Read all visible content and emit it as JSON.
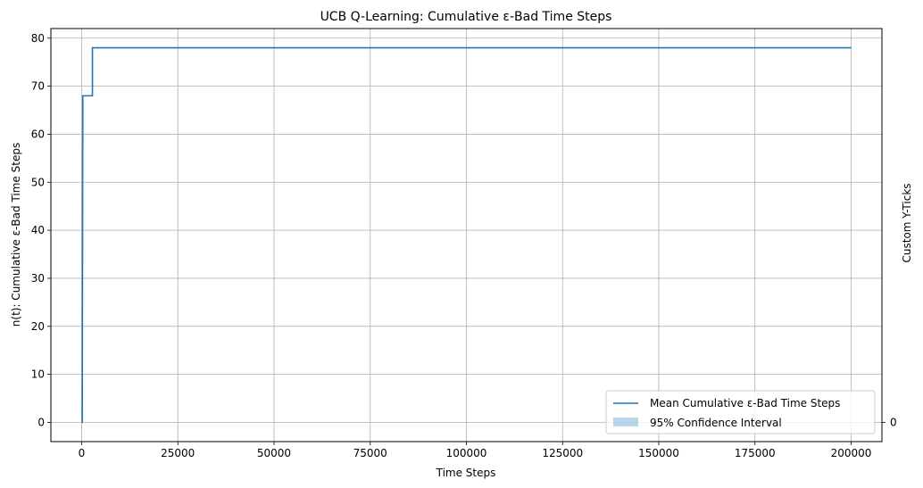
{
  "chart_data": {
    "type": "line",
    "title": "UCB Q-Learning: Cumulative ε-Bad Time Steps",
    "xlabel": "Time Steps",
    "ylabel": "n(t): Cumulative ε-Bad Time Steps",
    "ylabel_right": "Custom Y-Ticks",
    "xlim": [
      -8000,
      208000
    ],
    "ylim": [
      -4,
      82
    ],
    "x_ticks": [
      0,
      25000,
      50000,
      75000,
      100000,
      125000,
      150000,
      175000,
      200000
    ],
    "y_ticks": [
      0,
      10,
      20,
      30,
      40,
      50,
      60,
      70,
      80
    ],
    "y_ticks_right": [
      0
    ],
    "grid": true,
    "legend_position": "lower-right",
    "series": [
      {
        "name": "Mean Cumulative ε-Bad Time Steps",
        "color": "#1f77b4",
        "x": [
          0,
          150,
          300,
          400,
          2800,
          2800,
          200000
        ],
        "y": [
          0,
          0,
          68,
          68,
          68,
          78,
          78
        ]
      },
      {
        "name": "95% Confidence Interval",
        "color": "#1f77b4",
        "opacity": 0.3,
        "type": "band"
      }
    ]
  }
}
